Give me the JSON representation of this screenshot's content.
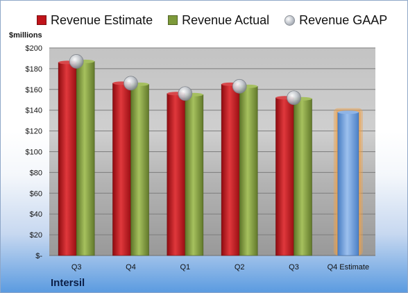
{
  "legend": {
    "estimate": "Revenue Estimate",
    "actual": "Revenue Actual",
    "gaap": "Revenue GAAP"
  },
  "colors": {
    "estimate": "#c0141a",
    "actual": "#7d9a3a",
    "gaap": "#c9ccd2",
    "forecast": "#6f9edb",
    "forecast_glow": "#f0a14a"
  },
  "company": "Intersil",
  "chart_data": {
    "type": "bar",
    "ylabel": "$millions",
    "ylim": [
      0,
      200
    ],
    "yticks": [
      "$-",
      "$20",
      "$40",
      "$60",
      "$80",
      "$100",
      "$120",
      "$140",
      "$160",
      "$180",
      "$200"
    ],
    "categories": [
      "Q3",
      "Q4",
      "Q1",
      "Q2",
      "Q3",
      "Q4 Estimate"
    ],
    "grid": true,
    "legend_position": "top",
    "series": [
      {
        "name": "Revenue Estimate",
        "values": [
          186,
          166,
          156,
          165,
          152,
          138
        ]
      },
      {
        "name": "Revenue Actual",
        "values": [
          187,
          165,
          155,
          163,
          151,
          null
        ]
      },
      {
        "name": "Revenue GAAP",
        "values": [
          187,
          166,
          156,
          163,
          152,
          null
        ]
      }
    ]
  }
}
